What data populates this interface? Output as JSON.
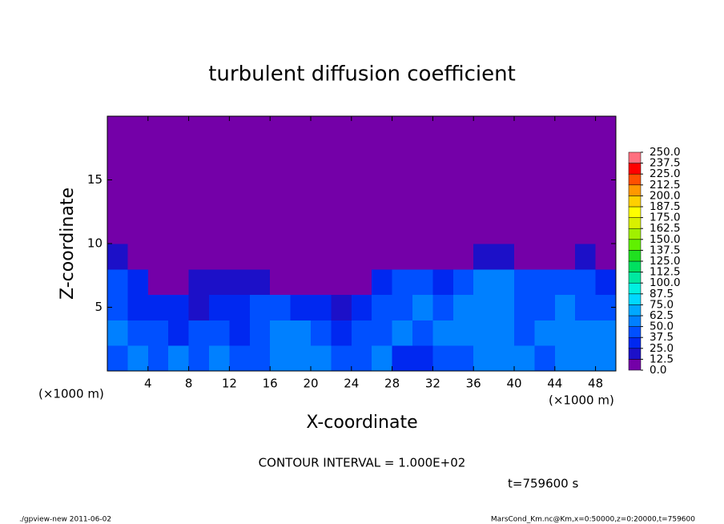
{
  "chart_data": {
    "type": "contour",
    "title": "turbulent diffusion coefficient",
    "x_label": "X-coordinate",
    "y_label": "Z-coordinate",
    "x_unit": "(×1000 m)",
    "y_unit": "(×1000 m)",
    "note": "CONTOUR INTERVAL = 1.000E+02",
    "time": "t=759600 s",
    "footer_left": "./gpview-new  2011-06-02",
    "footer_right": "MarsCond_Km.nc@Km,x=0:50000,z=0:20000,t=759600",
    "xlim": [
      0,
      50
    ],
    "ylim": [
      0,
      20
    ],
    "xticks": [
      4,
      8,
      12,
      16,
      20,
      24,
      28,
      32,
      36,
      40,
      44,
      48
    ],
    "yticks": [
      5,
      10,
      15
    ],
    "values": [
      [
        45,
        50,
        40,
        55,
        45,
        50,
        40,
        45,
        55,
        60,
        50,
        45,
        40,
        50,
        35,
        30,
        40,
        45,
        50,
        55,
        50,
        45,
        60,
        55,
        50
      ],
      [
        50,
        45,
        40,
        35,
        40,
        45,
        30,
        45,
        60,
        55,
        40,
        35,
        45,
        40,
        50,
        45,
        50,
        55,
        50,
        60,
        45,
        55,
        50,
        60,
        50
      ],
      [
        40,
        35,
        30,
        25,
        20,
        30,
        25,
        40,
        45,
        30,
        25,
        20,
        30,
        40,
        45,
        50,
        45,
        55,
        60,
        50,
        45,
        40,
        55,
        45,
        40
      ],
      [
        45,
        35,
        10,
        5,
        15,
        20,
        20,
        15,
        10,
        5,
        10,
        5,
        5,
        30,
        40,
        40,
        35,
        45,
        55,
        60,
        45,
        40,
        45,
        40,
        35
      ],
      [
        20,
        5,
        0,
        0,
        0,
        0,
        0,
        0,
        0,
        0,
        0,
        0,
        0,
        0,
        5,
        10,
        10,
        10,
        15,
        20,
        5,
        10,
        10,
        15,
        10
      ],
      [
        0,
        0,
        0,
        0,
        0,
        0,
        0,
        0,
        0,
        0,
        0,
        0,
        0,
        0,
        0,
        0,
        0,
        0,
        0,
        0,
        0,
        0,
        0,
        0,
        0
      ],
      [
        0,
        0,
        0,
        0,
        0,
        0,
        0,
        0,
        0,
        0,
        0,
        0,
        0,
        0,
        0,
        0,
        0,
        0,
        0,
        0,
        0,
        0,
        0,
        0,
        0
      ],
      [
        0,
        0,
        0,
        0,
        0,
        0,
        0,
        0,
        0,
        0,
        0,
        0,
        0,
        0,
        0,
        0,
        0,
        0,
        0,
        0,
        0,
        0,
        0,
        0,
        0
      ],
      [
        0,
        0,
        0,
        0,
        0,
        0,
        0,
        0,
        0,
        0,
        0,
        0,
        0,
        0,
        0,
        0,
        0,
        0,
        0,
        0,
        0,
        0,
        0,
        0,
        0
      ],
      [
        0,
        0,
        0,
        0,
        0,
        0,
        0,
        0,
        0,
        0,
        0,
        0,
        0,
        0,
        0,
        0,
        0,
        0,
        0,
        0,
        0,
        0,
        0,
        0,
        0
      ]
    ],
    "levels": [
      {
        "value": 0,
        "label": "0.0"
      },
      12.5,
      {
        "value": 25,
        "label": "25.0"
      },
      37.5,
      {
        "value": 50,
        "label": "50.0"
      },
      62.5,
      {
        "value": 75,
        "label": "75.0"
      },
      87.5,
      {
        "value": 100,
        "label": "100.0"
      },
      112.5,
      {
        "value": 125,
        "label": "125.0"
      },
      137.5,
      {
        "value": 150,
        "label": "150.0"
      },
      162.5,
      {
        "value": 175,
        "label": "175.0"
      },
      187.5,
      {
        "value": 200,
        "label": "200.0"
      },
      212.5,
      {
        "value": 225,
        "label": "225.0"
      },
      237.5,
      {
        "value": 250,
        "label": "250.0"
      }
    ],
    "colors": [
      "#7400a8",
      "#1c10c8",
      "#0028f0",
      "#0050ff",
      "#0080ff",
      "#00a8ff",
      "#00d8ff",
      "#00f0e0",
      "#00e8a0",
      "#00e060",
      "#20e020",
      "#60f000",
      "#a0f000",
      "#d8f000",
      "#ffff00",
      "#ffd000",
      "#ff9800",
      "#ff5000",
      "#ff0000",
      "#ff7080"
    ]
  }
}
